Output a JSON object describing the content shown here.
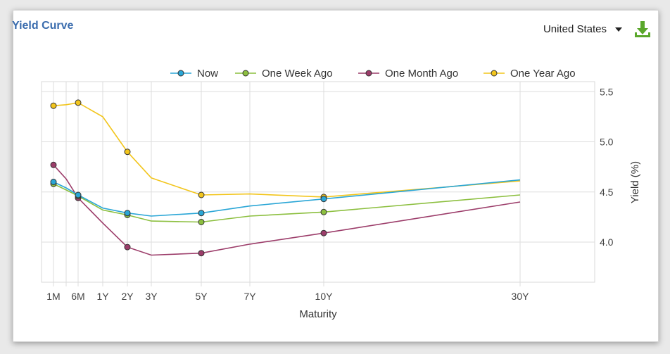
{
  "header": {
    "title": "Yield Curve",
    "country": "United States"
  },
  "icons": {
    "dropdown": "chevron-down-icon",
    "download": "download-icon"
  },
  "colors": {
    "title": "#3a6cad",
    "download_green": "#5aa72b"
  },
  "chart_data": {
    "type": "line",
    "xlabel": "Maturity",
    "ylabel": "Yield (%)",
    "x_ticks": [
      "1M",
      "6M",
      "1Y",
      "2Y",
      "3Y",
      "5Y",
      "7Y",
      "10Y",
      "30Y"
    ],
    "y_ticks": [
      4.0,
      4.5,
      5.0,
      5.5
    ],
    "ylim": [
      3.6,
      5.6
    ],
    "grid": true,
    "legend_position": "top-right",
    "categories": [
      "1M",
      "3M",
      "6M",
      "1Y",
      "2Y",
      "3Y",
      "5Y",
      "7Y",
      "10Y",
      "30Y"
    ],
    "series": [
      {
        "name": "Now",
        "color": "#2aa6d6",
        "values": [
          4.6,
          4.54,
          4.47,
          4.34,
          4.29,
          4.26,
          4.29,
          4.36,
          4.43,
          4.62
        ],
        "markers": [
          "1M",
          "6M",
          "2Y",
          "5Y",
          "10Y"
        ]
      },
      {
        "name": "One Week Ago",
        "color": "#8cbf3f",
        "values": [
          4.58,
          4.52,
          4.46,
          4.32,
          4.27,
          4.21,
          4.2,
          4.26,
          4.3,
          4.47
        ],
        "markers": [
          "1M",
          "6M",
          "2Y",
          "5Y",
          "10Y"
        ]
      },
      {
        "name": "One Month Ago",
        "color": "#9c3d6a",
        "values": [
          4.77,
          4.63,
          4.44,
          4.19,
          3.95,
          3.87,
          3.89,
          3.98,
          4.09,
          4.4
        ],
        "markers": [
          "1M",
          "6M",
          "2Y",
          "5Y",
          "10Y"
        ]
      },
      {
        "name": "One Year Ago",
        "color": "#f2c51c",
        "values": [
          5.36,
          5.37,
          5.39,
          5.25,
          4.9,
          4.64,
          4.47,
          4.48,
          4.45,
          4.61
        ],
        "markers": [
          "1M",
          "6M",
          "2Y",
          "5Y",
          "10Y"
        ]
      }
    ]
  }
}
